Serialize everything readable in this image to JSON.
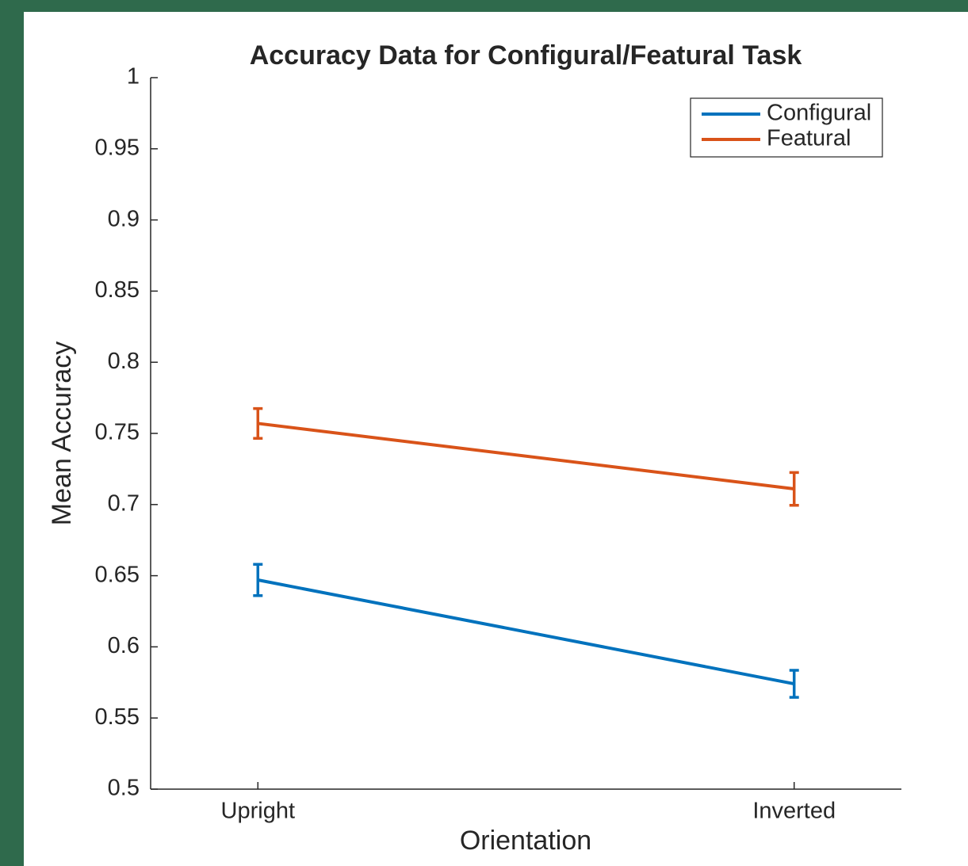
{
  "chart_data": {
    "type": "line",
    "title": "Accuracy Data for Configural/Featural Task",
    "xlabel": "Orientation",
    "ylabel": "Mean Accuracy",
    "categories": [
      "Upright",
      "Inverted"
    ],
    "series": [
      {
        "name": "Configural",
        "color": "#0072bd",
        "values": [
          0.647,
          0.574
        ],
        "errors": [
          0.011,
          0.0095
        ]
      },
      {
        "name": "Featural",
        "color": "#d95319",
        "values": [
          0.757,
          0.711
        ],
        "errors": [
          0.0105,
          0.0115
        ]
      }
    ],
    "ylim": [
      0.5,
      1
    ],
    "yticks": [
      0.5,
      0.55,
      0.6,
      0.65,
      0.7,
      0.75,
      0.8,
      0.85,
      0.9,
      0.95,
      1
    ],
    "legend": "top-right"
  }
}
